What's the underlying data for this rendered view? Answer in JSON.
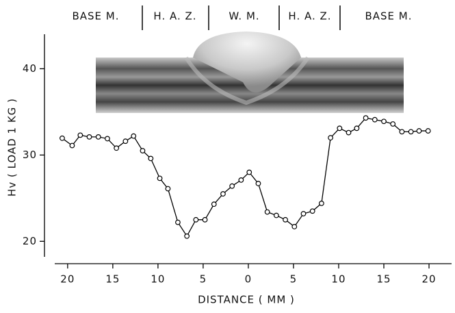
{
  "chart_data": {
    "type": "line",
    "zones": [
      "BASE M.",
      "H. A. Z.",
      "W. M.",
      "H. A. Z.",
      "BASE M."
    ],
    "ylabel": "Hv ( LOAD 1 KG )",
    "xlabel": "DISTANCE ( MM )",
    "x": [
      -20.6,
      -19.5,
      -18.6,
      -17.6,
      -16.6,
      -15.6,
      -14.6,
      -13.6,
      -12.7,
      -11.7,
      -10.8,
      -9.8,
      -8.9,
      -7.8,
      -6.8,
      -5.8,
      -4.8,
      -3.8,
      -2.8,
      -1.8,
      -0.8,
      0.1,
      1.1,
      2.1,
      3.1,
      4.1,
      5.1,
      6.1,
      7.1,
      8.1,
      9.1,
      10.1,
      11.1,
      12.0,
      13.0,
      14.0,
      15.0,
      16.0,
      17.0,
      18.0,
      18.9,
      19.9
    ],
    "values": [
      31.95,
      31.1,
      32.3,
      32.1,
      32.1,
      31.9,
      30.8,
      31.6,
      32.2,
      30.5,
      29.6,
      27.3,
      26.1,
      22.2,
      20.6,
      22.5,
      22.5,
      24.3,
      25.5,
      26.4,
      27.1,
      28.0,
      26.7,
      23.4,
      23.0,
      22.5,
      21.7,
      23.2,
      23.5,
      24.4,
      32.0,
      33.1,
      32.6,
      33.1,
      34.3,
      34.1,
      33.9,
      33.6,
      32.7,
      32.7,
      32.8,
      32.8
    ],
    "color": "#000000",
    "xlim": [
      -21.2,
      22.8
    ],
    "ylim": [
      18.2,
      44
    ],
    "xticks": [
      {
        "value": -20,
        "label": "20"
      },
      {
        "value": -15,
        "label": "15"
      },
      {
        "value": -10,
        "label": "10"
      },
      {
        "value": -5,
        "label": "5"
      },
      0,
      5,
      10,
      15,
      20
    ],
    "yticks": [
      20,
      30,
      40
    ]
  }
}
